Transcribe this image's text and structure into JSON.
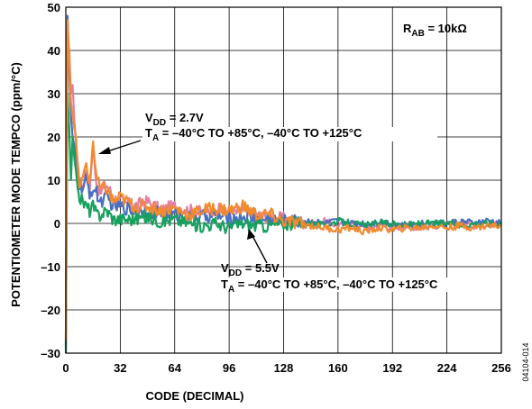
{
  "figure_id": "04104-014",
  "chart_data": {
    "type": "line",
    "title": "",
    "xlabel": "CODE (DECIMAL)",
    "ylabel": "POTENTIOMETER MODE TEMPCO (ppm/°C)",
    "xlim": [
      0,
      256
    ],
    "ylim": [
      -30,
      50
    ],
    "x_ticks": [
      0,
      32,
      64,
      96,
      128,
      160,
      192,
      224,
      256
    ],
    "y_ticks": [
      -30,
      -20,
      -10,
      0,
      10,
      20,
      30,
      40,
      50
    ],
    "grid": true,
    "legend": "none",
    "colors": [
      "#e07fa8",
      "#4a6fc0",
      "#17a05e",
      "#f28a2e"
    ],
    "series": [
      {
        "color": "#e07fa8",
        "x": [
          0,
          1,
          2,
          3,
          4,
          5,
          6,
          7,
          8,
          10,
          12,
          14,
          16,
          18,
          20,
          24,
          28,
          32,
          40,
          48,
          56,
          64,
          72,
          80,
          88,
          96,
          104,
          112,
          120,
          128,
          136,
          144,
          152,
          160,
          168,
          176,
          184,
          192,
          200,
          208,
          216,
          224,
          232,
          240,
          248,
          256
        ],
        "y": [
          -28,
          45,
          40,
          30,
          32,
          24,
          18,
          14,
          10,
          9,
          12,
          8,
          18,
          10,
          7,
          9,
          6,
          5,
          4,
          5,
          3,
          4,
          3,
          2.5,
          3.5,
          2,
          3,
          2,
          1.5,
          1,
          0.5,
          0,
          0.5,
          -0.5,
          0,
          -1,
          -0.5,
          -1,
          -0.5,
          -1,
          -0.5,
          -0.5,
          0,
          -0.5,
          0,
          -0.5
        ]
      },
      {
        "color": "#4a6fc0",
        "x": [
          0,
          1,
          2,
          3,
          4,
          5,
          6,
          7,
          8,
          10,
          12,
          14,
          16,
          18,
          20,
          24,
          28,
          32,
          40,
          48,
          56,
          64,
          72,
          80,
          88,
          96,
          104,
          112,
          120,
          128,
          136,
          144,
          152,
          160,
          168,
          176,
          184,
          192,
          200,
          208,
          216,
          224,
          232,
          240,
          248,
          256
        ],
        "y": [
          -29,
          48,
          35,
          25,
          20,
          18,
          15,
          12,
          9,
          8,
          10,
          7,
          8,
          7,
          5,
          6,
          4,
          4,
          3,
          3,
          2,
          2,
          1.5,
          1.5,
          2,
          1,
          1.5,
          1,
          1,
          0.5,
          0.5,
          0.5,
          0,
          0.5,
          0,
          0,
          0.5,
          0,
          -0.5,
          0,
          0,
          0,
          0.5,
          0,
          0.5,
          0
        ]
      },
      {
        "color": "#17a05e",
        "x": [
          0,
          1,
          2,
          3,
          4,
          5,
          6,
          7,
          8,
          10,
          12,
          14,
          16,
          18,
          20,
          24,
          28,
          32,
          40,
          48,
          56,
          64,
          72,
          80,
          88,
          96,
          104,
          112,
          120,
          128,
          136,
          144,
          152,
          160,
          168,
          176,
          184,
          192,
          200,
          208,
          216,
          224,
          232,
          240,
          248,
          256
        ],
        "y": [
          -30,
          30,
          22,
          10,
          20,
          15,
          12,
          8,
          6,
          5,
          4,
          3,
          4,
          2,
          2,
          3,
          1,
          1,
          1,
          1.5,
          0.5,
          1,
          0,
          -0.5,
          0,
          -1,
          0,
          -0.5,
          -0.5,
          0,
          0,
          0,
          -0.5,
          0.5,
          0,
          -0.5,
          0,
          0,
          -0.5,
          0,
          0,
          0,
          -0.5,
          0,
          0,
          0
        ]
      },
      {
        "color": "#f28a2e",
        "x": [
          0,
          1,
          2,
          3,
          4,
          5,
          6,
          7,
          8,
          10,
          12,
          14,
          16,
          18,
          20,
          24,
          28,
          32,
          40,
          48,
          56,
          64,
          72,
          80,
          88,
          96,
          104,
          112,
          120,
          128,
          136,
          144,
          152,
          160,
          168,
          176,
          184,
          192,
          200,
          208,
          216,
          224,
          232,
          240,
          248,
          256
        ],
        "y": [
          -27,
          47,
          38,
          28,
          25,
          22,
          20,
          13,
          9,
          10,
          14,
          9,
          19,
          11,
          8,
          8,
          5,
          6,
          4,
          4,
          3,
          3.5,
          2,
          3,
          3.5,
          3,
          4,
          2,
          2,
          0.5,
          0,
          -0.5,
          -1,
          -1.5,
          -1,
          -2,
          -1,
          -1.5,
          -1,
          -1,
          -0.5,
          -1,
          -0.5,
          -1,
          -0.5,
          -0.5
        ]
      }
    ],
    "annotations": [
      {
        "id": "rab",
        "main": "R",
        "sub": "AB",
        "rest": " = 10kΩ"
      },
      {
        "id": "vdd27",
        "line1_main": "V",
        "line1_sub": "DD",
        "line1_rest": " = 2.7V",
        "line2_main": "T",
        "line2_sub": "A",
        "line2_rest": " = –40°C TO +85°C, –40°C TO +125°C",
        "arrow_to": [
          16,
          17
        ]
      },
      {
        "id": "vdd55",
        "line1_main": "V",
        "line1_sub": "DD",
        "line1_rest": " = 5.5V",
        "line2_main": "T",
        "line2_sub": "A",
        "line2_rest": " = –40°C TO +85°C, –40°C TO +125°C",
        "arrow_to": [
          104,
          -0.5
        ]
      }
    ]
  }
}
